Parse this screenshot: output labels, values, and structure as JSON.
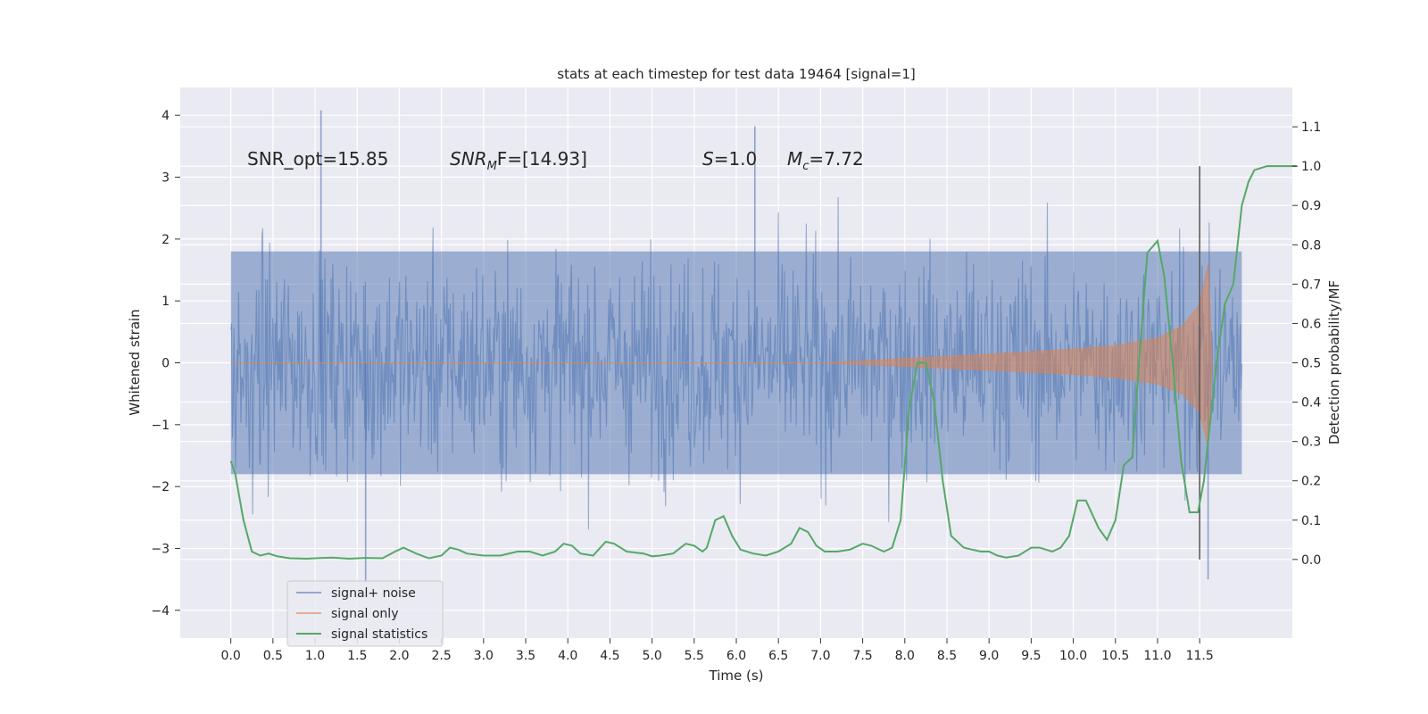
{
  "chart_data": {
    "type": "line",
    "title": "stats at each timestep for test data 19464 [signal=1]",
    "xlabel": "Time (s)",
    "ylabel_left": "Whitened strain",
    "ylabel_right": "Detection probability/MF",
    "xlim": [
      -0.6,
      12.6
    ],
    "ylim_left": [
      -4.45,
      4.45
    ],
    "ylim_right": [
      -0.2,
      1.2
    ],
    "x_ticks": [
      "0.0",
      "0.5",
      "1.0",
      "1.5",
      "2.0",
      "2.5",
      "3.0",
      "3.5",
      "4.0",
      "4.5",
      "5.0",
      "5.5",
      "6.0",
      "6.5",
      "7.0",
      "7.5",
      "8.0",
      "8.5",
      "9.0",
      "9.5",
      "10.0",
      "10.5",
      "11.0",
      "11.5"
    ],
    "y_ticks_left": [
      "4",
      "3",
      "2",
      "1",
      "0",
      "−1",
      "−2",
      "−3",
      "−4"
    ],
    "y_ticks_right": [
      "1.1",
      "1.0",
      "0.9",
      "0.8",
      "0.7",
      "0.6",
      "0.5",
      "0.4",
      "0.3",
      "0.2",
      "0.1",
      "0.0"
    ],
    "annotations": {
      "snr_opt": "SNR_opt=15.85",
      "snr_mf_symbol": "SNR",
      "snr_mf_sub": "M",
      "snr_mf_rest": "F=[14.93]",
      "s_symbol": "S",
      "s_value": "=1.0",
      "mc_symbol": "M",
      "mc_sub": "c",
      "mc_value": "=7.72"
    },
    "vertical_marker_x": 11.5,
    "legend": {
      "position": "lower-left",
      "items": [
        "signal+ noise",
        "signal only",
        "signal statistics"
      ]
    },
    "series": [
      {
        "name": "signal+ noise",
        "axis": "left",
        "color": "#4c72b0",
        "alpha": 0.5,
        "x_range": [
          0.0,
          12.0
        ],
        "band_typical": [
          -1.8,
          1.8
        ],
        "max_abs_typical": 3.5,
        "peaks": [
          {
            "x": 1.07,
            "y": 4.08
          },
          {
            "x": 6.22,
            "y": 3.82
          },
          {
            "x": 1.6,
            "y": -3.55
          },
          {
            "x": 11.6,
            "y": -3.5
          }
        ]
      },
      {
        "name": "signal only",
        "axis": "left",
        "color": "#dd8452",
        "x_range": [
          0.0,
          12.0
        ],
        "envelope": [
          {
            "x": 7.0,
            "y": 0.0
          },
          {
            "x": 7.5,
            "y": 0.03
          },
          {
            "x": 8.0,
            "y": 0.07
          },
          {
            "x": 9.0,
            "y": 0.14
          },
          {
            "x": 10.0,
            "y": 0.22
          },
          {
            "x": 10.5,
            "y": 0.28
          },
          {
            "x": 11.0,
            "y": 0.4
          },
          {
            "x": 11.3,
            "y": 0.6
          },
          {
            "x": 11.5,
            "y": 0.95
          },
          {
            "x": 11.6,
            "y": 1.6
          },
          {
            "x": 11.65,
            "y": 0.0
          }
        ]
      },
      {
        "name": "signal statistics",
        "axis": "right",
        "color": "#55a868",
        "points": [
          [
            0.0,
            0.25
          ],
          [
            0.05,
            0.22
          ],
          [
            0.15,
            0.1
          ],
          [
            0.25,
            0.02
          ],
          [
            0.35,
            0.01
          ],
          [
            0.45,
            0.015
          ],
          [
            0.55,
            0.008
          ],
          [
            0.7,
            0.003
          ],
          [
            0.9,
            0.002
          ],
          [
            1.0,
            0.003
          ],
          [
            1.2,
            0.005
          ],
          [
            1.4,
            0.002
          ],
          [
            1.6,
            0.004
          ],
          [
            1.8,
            0.003
          ],
          [
            1.95,
            0.02
          ],
          [
            2.05,
            0.03
          ],
          [
            2.2,
            0.015
          ],
          [
            2.35,
            0.003
          ],
          [
            2.5,
            0.01
          ],
          [
            2.6,
            0.03
          ],
          [
            2.7,
            0.025
          ],
          [
            2.8,
            0.015
          ],
          [
            3.0,
            0.01
          ],
          [
            3.2,
            0.01
          ],
          [
            3.4,
            0.02
          ],
          [
            3.55,
            0.02
          ],
          [
            3.7,
            0.01
          ],
          [
            3.85,
            0.02
          ],
          [
            3.95,
            0.04
          ],
          [
            4.05,
            0.035
          ],
          [
            4.15,
            0.015
          ],
          [
            4.3,
            0.01
          ],
          [
            4.45,
            0.045
          ],
          [
            4.55,
            0.04
          ],
          [
            4.7,
            0.02
          ],
          [
            4.9,
            0.015
          ],
          [
            5.0,
            0.008
          ],
          [
            5.1,
            0.01
          ],
          [
            5.25,
            0.015
          ],
          [
            5.4,
            0.04
          ],
          [
            5.5,
            0.035
          ],
          [
            5.6,
            0.02
          ],
          [
            5.65,
            0.03
          ],
          [
            5.75,
            0.1
          ],
          [
            5.85,
            0.11
          ],
          [
            5.95,
            0.06
          ],
          [
            6.05,
            0.025
          ],
          [
            6.2,
            0.015
          ],
          [
            6.35,
            0.01
          ],
          [
            6.5,
            0.02
          ],
          [
            6.65,
            0.04
          ],
          [
            6.75,
            0.08
          ],
          [
            6.85,
            0.07
          ],
          [
            6.95,
            0.035
          ],
          [
            7.05,
            0.02
          ],
          [
            7.2,
            0.02
          ],
          [
            7.35,
            0.025
          ],
          [
            7.5,
            0.04
          ],
          [
            7.6,
            0.035
          ],
          [
            7.75,
            0.02
          ],
          [
            7.85,
            0.03
          ],
          [
            7.95,
            0.1
          ],
          [
            8.05,
            0.38
          ],
          [
            8.15,
            0.5
          ],
          [
            8.25,
            0.5
          ],
          [
            8.35,
            0.4
          ],
          [
            8.45,
            0.2
          ],
          [
            8.55,
            0.06
          ],
          [
            8.7,
            0.03
          ],
          [
            8.9,
            0.02
          ],
          [
            9.0,
            0.02
          ],
          [
            9.1,
            0.01
          ],
          [
            9.2,
            0.005
          ],
          [
            9.35,
            0.01
          ],
          [
            9.5,
            0.03
          ],
          [
            9.6,
            0.03
          ],
          [
            9.75,
            0.02
          ],
          [
            9.85,
            0.03
          ],
          [
            9.95,
            0.06
          ],
          [
            10.05,
            0.15
          ],
          [
            10.15,
            0.15
          ],
          [
            10.3,
            0.08
          ],
          [
            10.4,
            0.05
          ],
          [
            10.5,
            0.1
          ],
          [
            10.6,
            0.24
          ],
          [
            10.7,
            0.26
          ],
          [
            10.78,
            0.5
          ],
          [
            10.88,
            0.78
          ],
          [
            11.0,
            0.81
          ],
          [
            11.08,
            0.72
          ],
          [
            11.18,
            0.5
          ],
          [
            11.28,
            0.25
          ],
          [
            11.38,
            0.12
          ],
          [
            11.48,
            0.12
          ],
          [
            11.55,
            0.2
          ],
          [
            11.7,
            0.5
          ],
          [
            11.8,
            0.65
          ],
          [
            11.9,
            0.7
          ],
          [
            12.0,
            0.9
          ],
          [
            12.08,
            0.96
          ],
          [
            12.15,
            0.99
          ],
          [
            12.3,
            1.0
          ],
          [
            12.5,
            1.0
          ],
          [
            12.65,
            1.0
          ]
        ]
      }
    ]
  }
}
